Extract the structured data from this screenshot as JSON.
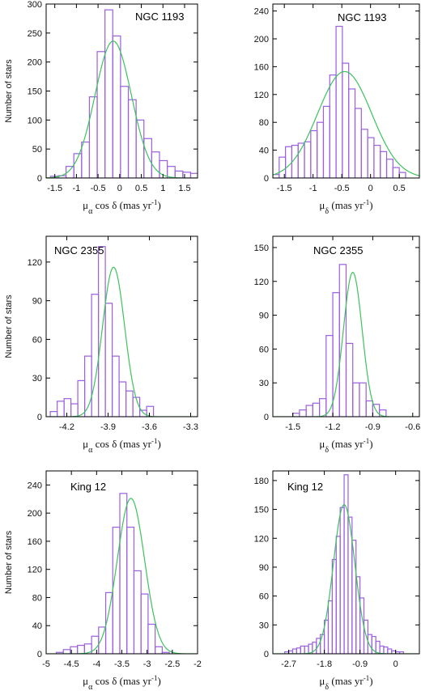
{
  "chart_data": [
    {
      "type": "bar",
      "title": "NGC 1193",
      "xlabel": "μα cos δ (mas yr⁻¹)",
      "ylabel": "Number of stars",
      "xlim": [
        -1.7,
        1.8
      ],
      "ylim": [
        0,
        300
      ],
      "xticks": [
        -1.5,
        -1,
        -0.5,
        0,
        0.5,
        1,
        1.5
      ],
      "xtick_labels": [
        "-1.5",
        "-1",
        "-0.5",
        "0",
        "0.5",
        "1",
        "1.5"
      ],
      "yticks": [
        0,
        50,
        100,
        150,
        200,
        250,
        300
      ],
      "bin_width": 0.18,
      "bin_start": -1.6,
      "values": [
        3,
        4,
        20,
        42,
        62,
        140,
        218,
        290,
        245,
        158,
        135,
        100,
        68,
        45,
        30,
        20,
        12,
        10,
        8
      ],
      "fit": {
        "type": "gaussian",
        "amplitude": 236,
        "mean": -0.15,
        "sigma": 0.42
      },
      "grid": false
    },
    {
      "type": "bar",
      "title": "NGC 1193",
      "xlabel": "μδ (mas yr⁻¹)",
      "ylabel": "",
      "xlim": [
        -1.7,
        0.85
      ],
      "ylim": [
        0,
        250
      ],
      "xticks": [
        -1.5,
        -1,
        -0.5,
        0,
        0.5
      ],
      "xtick_labels": [
        "-1.5",
        "-1",
        "-0.5",
        "0",
        "0.5"
      ],
      "yticks": [
        0,
        40,
        80,
        120,
        160,
        200,
        240
      ],
      "bin_width": 0.11,
      "bin_start": -1.7,
      "values": [
        5,
        30,
        45,
        47,
        50,
        52,
        68,
        80,
        103,
        148,
        218,
        165,
        128,
        100,
        70,
        58,
        47,
        38,
        27,
        15,
        8
      ],
      "fit": {
        "type": "gaussian",
        "amplitude": 153,
        "mean": -0.45,
        "sigma": 0.47
      },
      "grid": false
    },
    {
      "type": "bar",
      "title": "NGC 2355",
      "xlabel": "μα cos δ (mas yr⁻¹)",
      "ylabel": "Number of stars",
      "xlim": [
        -4.35,
        -3.25
      ],
      "ylim": [
        0,
        140
      ],
      "xticks": [
        -4.2,
        -3.9,
        -3.6,
        -3.3
      ],
      "xtick_labels": [
        "-4.2",
        "-3.9",
        "-3.6",
        "-3.3"
      ],
      "yticks": [
        0,
        30,
        60,
        90,
        120
      ],
      "bin_width": 0.05,
      "bin_start": -4.32,
      "values": [
        4,
        12,
        14,
        10,
        28,
        47,
        95,
        132,
        88,
        47,
        27,
        20,
        15,
        5,
        8
      ],
      "fit": {
        "type": "gaussian",
        "amplitude": 116,
        "mean": -3.86,
        "sigma": 0.08
      },
      "grid": false
    },
    {
      "type": "bar",
      "title": "NGC 2355",
      "xlabel": "μδ (mas yr⁻¹)",
      "ylabel": "",
      "xlim": [
        -1.65,
        -0.55
      ],
      "ylim": [
        0,
        160
      ],
      "xticks": [
        -1.5,
        -1.2,
        -0.9,
        -0.6
      ],
      "xtick_labels": [
        "-1.5",
        "-1.2",
        "-0.9",
        "-0.6"
      ],
      "yticks": [
        0,
        30,
        60,
        90,
        120,
        150
      ],
      "bin_width": 0.05,
      "bin_start": -1.5,
      "values": [
        3,
        6,
        10,
        12,
        16,
        72,
        110,
        135,
        65,
        30,
        30,
        14,
        11,
        6
      ],
      "fit": {
        "type": "gaussian",
        "amplitude": 128,
        "mean": -1.05,
        "sigma": 0.07
      },
      "grid": false
    },
    {
      "type": "bar",
      "title": "King 12",
      "xlabel": "μα cos δ (mas yr⁻¹)",
      "ylabel": "Number of stars",
      "xlim": [
        -5.0,
        -2.0
      ],
      "ylim": [
        0,
        260
      ],
      "xticks": [
        -5,
        -4.5,
        -4,
        -3.5,
        -3,
        -2.5,
        -2
      ],
      "xtick_labels": [
        "-5",
        "-4.5",
        "-4",
        "-3.5",
        "-3",
        "-2.5",
        "-2"
      ],
      "yticks": [
        0,
        40,
        80,
        120,
        160,
        200,
        240
      ],
      "bin_width": 0.14,
      "bin_start": -4.8,
      "values": [
        2,
        6,
        10,
        12,
        14,
        25,
        38,
        87,
        180,
        228,
        180,
        118,
        85,
        42,
        10,
        2
      ],
      "fit": {
        "type": "gaussian",
        "amplitude": 221,
        "mean": -3.32,
        "sigma": 0.27
      },
      "grid": false
    },
    {
      "type": "bar",
      "title": "King 12",
      "xlabel": "μδ (mas yr⁻¹)",
      "ylabel": "",
      "xlim": [
        -3.1,
        0.6
      ],
      "ylim": [
        0,
        190
      ],
      "xticks": [
        -2.7,
        -1.8,
        -0.9,
        0
      ],
      "xtick_labels": [
        "-2.7",
        "-1.8",
        "-0.9",
        "0"
      ],
      "yticks": [
        0,
        30,
        60,
        90,
        120,
        150,
        180
      ],
      "bin_width": 0.1,
      "bin_start": -2.8,
      "values": [
        2,
        3,
        5,
        6,
        8,
        8,
        10,
        12,
        16,
        20,
        35,
        55,
        98,
        122,
        152,
        186,
        142,
        118,
        80,
        58,
        35,
        20,
        18,
        13,
        8,
        7,
        5,
        3,
        2,
        2
      ],
      "fit": {
        "type": "gaussian",
        "amplitude": 155,
        "mean": -1.3,
        "sigma": 0.27
      },
      "grid": false
    }
  ]
}
